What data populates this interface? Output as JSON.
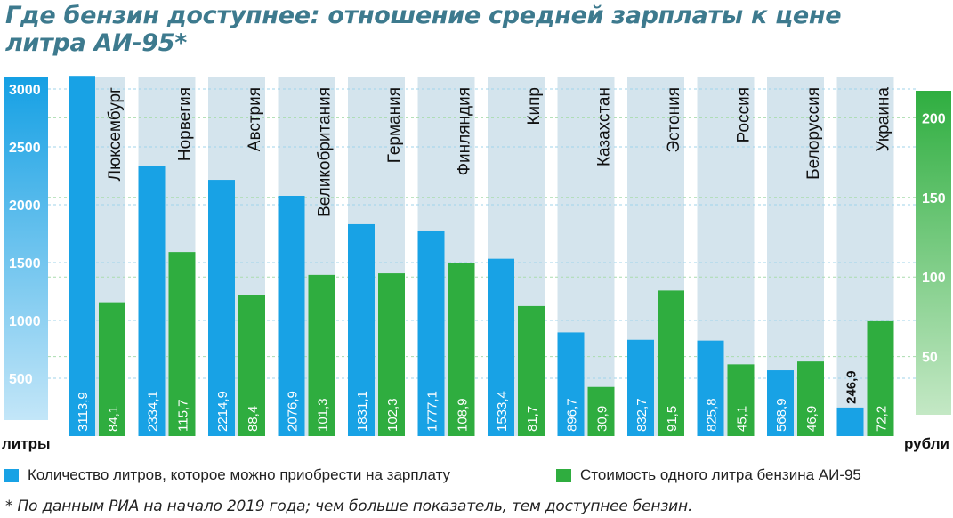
{
  "title": "Где бензин доступнее: отношение средней зарплаты к цене литра АИ-95*",
  "footnote": "* По данным РИА на начало 2019 года; чем больше показатель, тем доступнее бензин.",
  "colors": {
    "liters": "#18a2e5",
    "price": "#2fad3f",
    "title": "#3d7a8e",
    "panel": "#d4e4ed"
  },
  "chart_data": {
    "type": "bar",
    "categories": [
      "Люксембург",
      "Норвегия",
      "Австрия",
      "Великобритания",
      "Германия",
      "Финляндия",
      "Кипр",
      "Казахстан",
      "Эстония",
      "Россия",
      "Белоруссия",
      "Украина"
    ],
    "series": [
      {
        "name": "Количество литров, которое можно приобрести на зарплату",
        "axis": "left",
        "values": [
          3113.9,
          2334.1,
          2214.9,
          2076.9,
          1831.1,
          1777.1,
          1533.4,
          896.7,
          832.7,
          825.8,
          568.9,
          246.9
        ],
        "labels": [
          "3113,9",
          "2334,1",
          "2214,9",
          "2076,9",
          "1831,1",
          "1777,1",
          "1533,4",
          "896,7",
          "832,7",
          "825,8",
          "568,9",
          "246,9"
        ]
      },
      {
        "name": "Стоимость одного литра бензина АИ-95",
        "axis": "right",
        "values": [
          84.1,
          115.7,
          88.4,
          101.3,
          102.3,
          108.9,
          81.7,
          30.9,
          91.5,
          45.1,
          46.9,
          72.2
        ],
        "labels": [
          "84,1",
          "115,7",
          "88,4",
          "101,3",
          "102,3",
          "108,9",
          "81,7",
          "30,9",
          "91,5",
          "45,1",
          "46,9",
          "72,2"
        ]
      }
    ],
    "y_left": {
      "label": "литры",
      "ticks": [
        500,
        1000,
        1500,
        2000,
        2500,
        3000
      ],
      "ylim": [
        0,
        3200
      ]
    },
    "y_right": {
      "label": "рубли",
      "ticks": [
        50,
        100,
        150,
        200
      ],
      "ylim": [
        0,
        225
      ]
    },
    "grid": true,
    "legend": "bottom"
  }
}
